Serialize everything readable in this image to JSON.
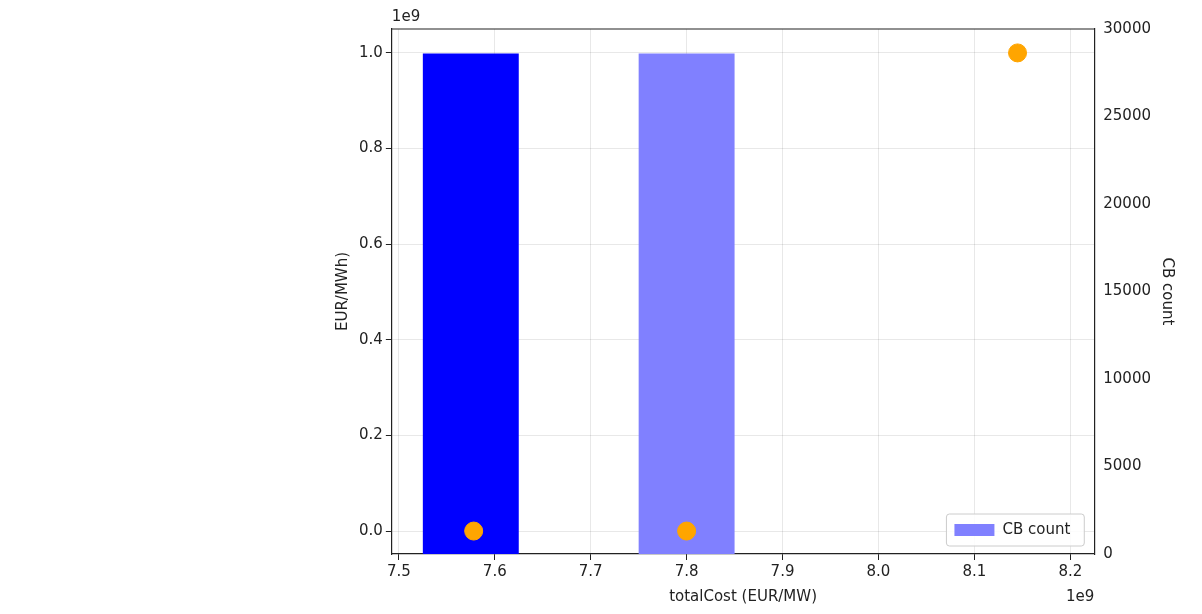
{
  "chart_data": {
    "type": "scatter",
    "xlabel": "totalCost (EUR/MW)",
    "ylabel": "EUR/MWh)",
    "y2label": "CB count",
    "xlim": [
      7.4927,
      8.225
    ],
    "xticks": [
      7.5,
      7.6,
      7.7,
      7.8,
      7.9,
      {
        "value": 8,
        "label": "8.0"
      },
      8.1,
      8.2
    ],
    "ylim": [
      -0.048,
      1.05
    ],
    "yticks": [
      {
        "value": 0,
        "label": "0.0"
      },
      0.2,
      0.4,
      0.6,
      0.8,
      {
        "value": 1,
        "label": "1.0"
      }
    ],
    "y2lim": [
      0,
      30000
    ],
    "y2ticks": [
      0,
      5000,
      10000,
      15000,
      20000,
      25000,
      30000
    ],
    "series": [
      {
        "type": "histogram",
        "axis": "y2",
        "color": "#0000ff",
        "bins": [
          7.525,
          7.625
        ],
        "values": [
          28600
        ]
      },
      {
        "type": "histogram",
        "axis": "y2",
        "name": "CB count",
        "color": "#8080ff",
        "bins": [
          7.75,
          7.85
        ],
        "values": [
          28600
        ]
      },
      {
        "color": "#ffa500",
        "x": [
          7.578,
          7.8,
          8.145
        ],
        "values": [
          0,
          0,
          1.0
        ]
      }
    ],
    "annotations": [
      "1e9",
      "1e9"
    ],
    "grid": true,
    "legend": "bottom right",
    "marker": "circle"
  }
}
